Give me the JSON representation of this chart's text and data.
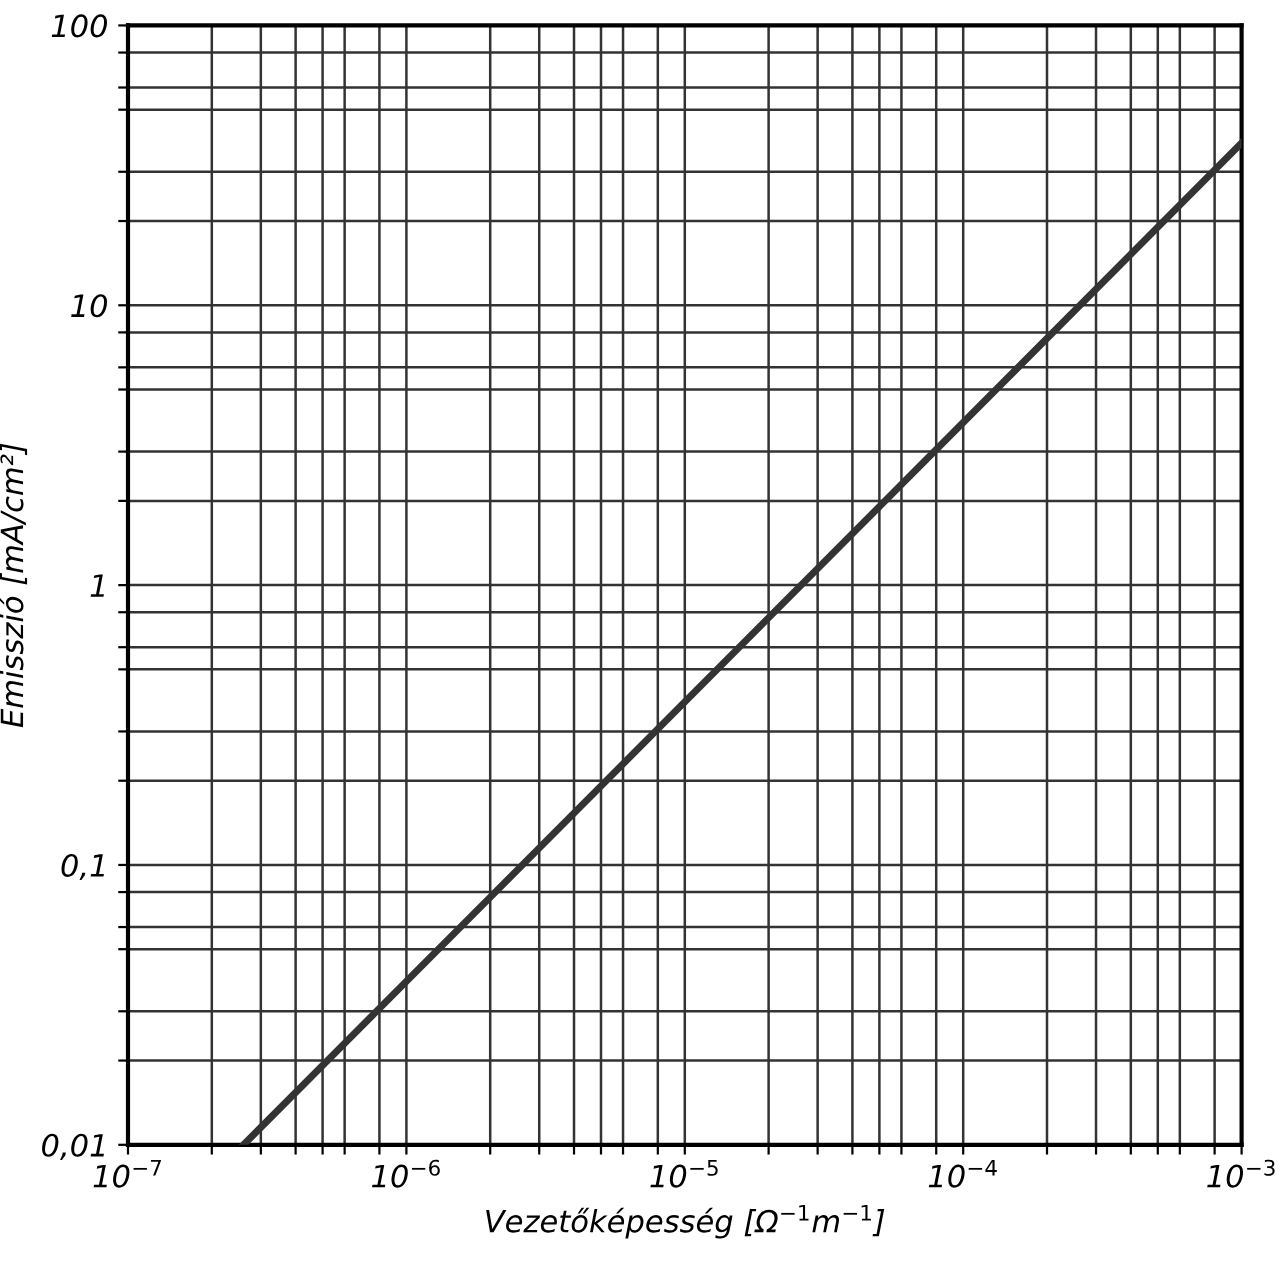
{
  "chart_data": {
    "type": "line",
    "xlabel": "Vezetőképesség [Ω$^{−1}$m$^{−1}$]",
    "ylabel": "Emisszió [mA/cm²]",
    "log": "xy",
    "grid": true,
    "marker": "none",
    "line_style": "solid",
    "x": [
      2.6e-07,
      0.001
    ],
    "series": [
      {
        "color": "#333333",
        "values": [
          0.01,
          38
        ]
      }
    ],
    "xlim": [
      1e-07,
      0.001
    ],
    "ylim": [
      0.01,
      100
    ],
    "xticks": [
      {
        "value": 1e-07,
        "label": "10$^{−7}$"
      },
      {
        "value": 2e-07,
        "label": null
      },
      {
        "value": 3e-07,
        "label": null
      },
      {
        "value": 4e-07,
        "label": null
      },
      {
        "value": 5e-07,
        "label": null
      },
      {
        "value": 6e-07,
        "label": null
      },
      {
        "value": 8e-07,
        "label": null
      },
      {
        "value": 1e-06,
        "label": "10$^{−6}$"
      },
      {
        "value": 2e-06,
        "label": null
      },
      {
        "value": 3e-06,
        "label": null
      },
      {
        "value": 4e-06,
        "label": null
      },
      {
        "value": 5e-06,
        "label": null
      },
      {
        "value": 6e-06,
        "label": null
      },
      {
        "value": 8e-06,
        "label": null
      },
      {
        "value": 1e-05,
        "label": "10$^{−5}$"
      },
      {
        "value": 2e-05,
        "label": null
      },
      {
        "value": 3e-05,
        "label": null
      },
      {
        "value": 4e-05,
        "label": null
      },
      {
        "value": 5e-05,
        "label": null
      },
      {
        "value": 6e-05,
        "label": null
      },
      {
        "value": 8e-05,
        "label": null
      },
      {
        "value": 0.0001,
        "label": "10$^{−4}$"
      },
      {
        "value": 0.0002,
        "label": null
      },
      {
        "value": 0.0003,
        "label": null
      },
      {
        "value": 0.0004,
        "label": null
      },
      {
        "value": 0.0005,
        "label": null
      },
      {
        "value": 0.0006,
        "label": null
      },
      {
        "value": 0.0008,
        "label": null
      },
      {
        "value": 0.001,
        "label": "10$^{−3}$"
      }
    ],
    "yticks": [
      {
        "value": 0.01,
        "label": "0,01"
      },
      {
        "value": 0.02,
        "label": null
      },
      {
        "value": 0.03,
        "label": null
      },
      {
        "value": 0.05,
        "label": null
      },
      {
        "value": 0.06,
        "label": null
      },
      {
        "value": 0.08,
        "label": null
      },
      {
        "value": 0.1,
        "label": "0,1"
      },
      {
        "value": 0.2,
        "label": null
      },
      {
        "value": 0.3,
        "label": null
      },
      {
        "value": 0.5,
        "label": null
      },
      {
        "value": 0.6,
        "label": null
      },
      {
        "value": 0.8,
        "label": null
      },
      {
        "value": 1,
        "label": "1"
      },
      {
        "value": 2,
        "label": null
      },
      {
        "value": 3,
        "label": null
      },
      {
        "value": 5,
        "label": null
      },
      {
        "value": 6,
        "label": null
      },
      {
        "value": 8,
        "label": null
      },
      {
        "value": 10,
        "label": "10"
      },
      {
        "value": 20,
        "label": null
      },
      {
        "value": 30,
        "label": null
      },
      {
        "value": 50,
        "label": null
      },
      {
        "value": 60,
        "label": null
      },
      {
        "value": 80,
        "label": null
      },
      {
        "value": 100,
        "label": "100"
      }
    ]
  }
}
